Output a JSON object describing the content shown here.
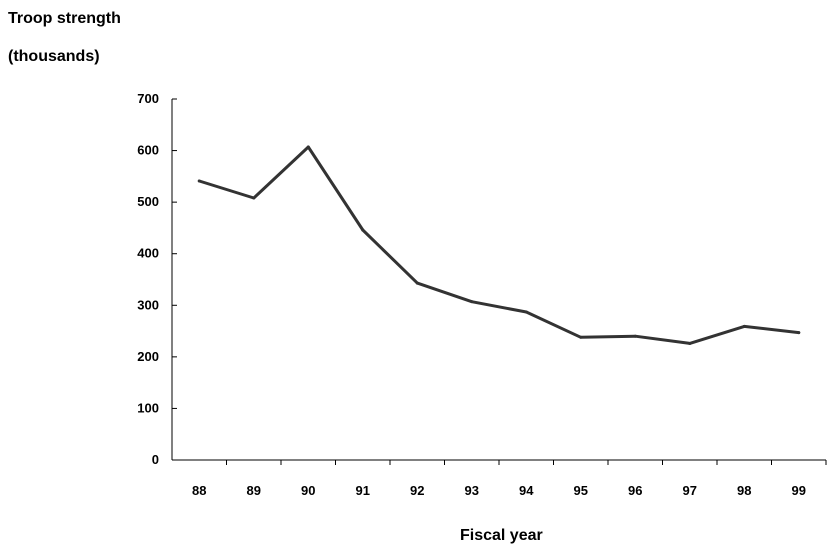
{
  "chart_data": {
    "type": "line",
    "ylabel": [
      "Troop strength",
      "(thousands)"
    ],
    "xlabel": "Fiscal year",
    "categories": [
      "88",
      "89",
      "90",
      "91",
      "92",
      "93",
      "94",
      "95",
      "96",
      "97",
      "98",
      "99"
    ],
    "series": [
      {
        "values": [
          541,
          508,
          607,
          446,
          343,
          307,
          287,
          238,
          240,
          226,
          259,
          247
        ],
        "color": "#333333"
      }
    ],
    "ylim": [
      0,
      700
    ],
    "yticks": [
      "0",
      "100",
      "200",
      "300",
      "400",
      "500",
      "600",
      "700"
    ],
    "grid": false,
    "legend": "none"
  }
}
